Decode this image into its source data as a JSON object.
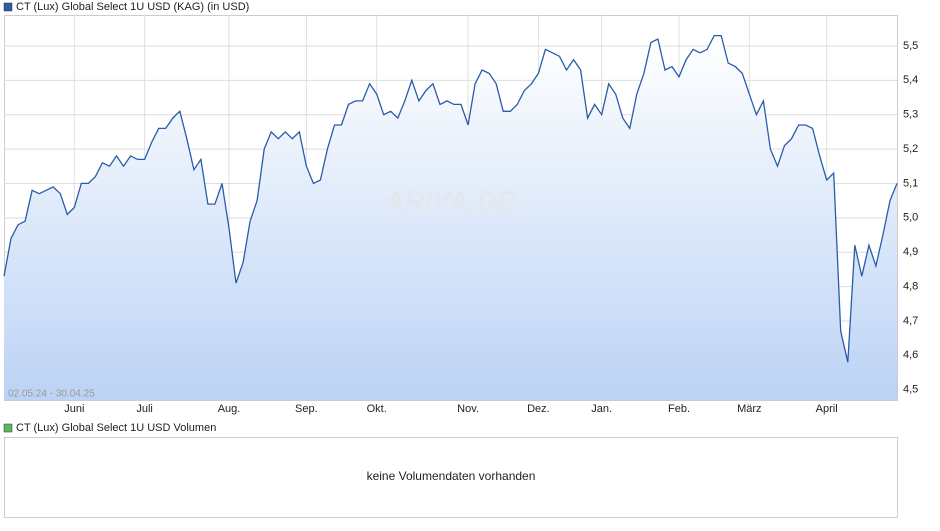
{
  "chart_data": [
    {
      "type": "area",
      "series": [
        {
          "name": "CT (Lux) Global Select 1U USD (KAG) (in USD)",
          "color": "#2a5caa",
          "values": [
            4.83,
            4.94,
            4.98,
            4.99,
            5.08,
            5.07,
            5.08,
            5.09,
            5.07,
            5.01,
            5.03,
            5.1,
            5.1,
            5.12,
            5.16,
            5.15,
            5.18,
            5.15,
            5.18,
            5.17,
            5.17,
            5.22,
            5.26,
            5.26,
            5.29,
            5.31,
            5.23,
            5.14,
            5.17,
            5.04,
            5.04,
            5.1,
            4.97,
            4.81,
            4.87,
            4.99,
            5.05,
            5.2,
            5.25,
            5.23,
            5.25,
            5.23,
            5.25,
            5.15,
            5.1,
            5.11,
            5.2,
            5.27,
            5.27,
            5.33,
            5.34,
            5.34,
            5.39,
            5.36,
            5.3,
            5.31,
            5.29,
            5.34,
            5.4,
            5.34,
            5.37,
            5.39,
            5.33,
            5.34,
            5.33,
            5.33,
            5.27,
            5.39,
            5.43,
            5.42,
            5.39,
            5.31,
            5.31,
            5.33,
            5.37,
            5.39,
            5.42,
            5.49,
            5.48,
            5.47,
            5.43,
            5.46,
            5.43,
            5.29,
            5.33,
            5.3,
            5.39,
            5.36,
            5.29,
            5.26,
            5.36,
            5.42,
            5.51,
            5.52,
            5.43,
            5.44,
            5.41,
            5.46,
            5.49,
            5.48,
            5.49,
            5.53,
            5.53,
            5.45,
            5.44,
            5.42,
            5.36,
            5.3,
            5.34,
            5.2,
            5.15,
            5.21,
            5.23,
            5.27,
            5.27,
            5.26,
            5.18,
            5.11,
            5.13,
            4.67,
            4.58,
            4.92,
            4.83,
            4.92,
            4.86,
            4.95,
            5.05,
            5.1
          ]
        }
      ],
      "date_range": "02.05.24 - 30.04.25",
      "watermark": "ARIVA.DE",
      "xlim": [
        0,
        127
      ],
      "xticks": [
        {
          "value": 10,
          "label": "Juni"
        },
        {
          "value": 20,
          "label": "Juli"
        },
        {
          "value": 32,
          "label": "Aug."
        },
        {
          "value": 43,
          "label": "Sep."
        },
        {
          "value": 53,
          "label": "Okt."
        },
        {
          "value": 66,
          "label": "Nov."
        },
        {
          "value": 76,
          "label": "Dez."
        },
        {
          "value": 85,
          "label": "Jan."
        },
        {
          "value": 96,
          "label": "Feb."
        },
        {
          "value": 106,
          "label": "März"
        },
        {
          "value": 117,
          "label": "April"
        }
      ],
      "ylim": [
        4.47,
        5.59
      ],
      "yticks": [
        {
          "value": 4.5,
          "label": "4,5"
        },
        {
          "value": 4.6,
          "label": "4,6"
        },
        {
          "value": 4.7,
          "label": "4,7"
        },
        {
          "value": 4.8,
          "label": "4,8"
        },
        {
          "value": 4.9,
          "label": "4,9"
        },
        {
          "value": 5.0,
          "label": "5,0"
        },
        {
          "value": 5.1,
          "label": "5,1"
        },
        {
          "value": 5.2,
          "label": "5,2"
        },
        {
          "value": 5.3,
          "label": "5,3"
        },
        {
          "value": 5.4,
          "label": "5,4"
        },
        {
          "value": 5.5,
          "label": "5,5"
        }
      ],
      "grid": true
    },
    {
      "type": "bar",
      "series": [
        {
          "name": "CT (Lux) Global Select 1U USD Volumen",
          "color": "#5cb85c"
        }
      ],
      "annotation": "keine Volumendaten vorhanden"
    }
  ]
}
